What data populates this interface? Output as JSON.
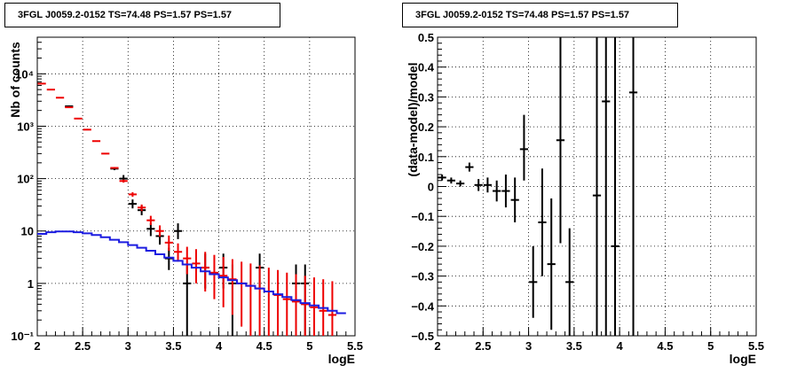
{
  "chart_data": [
    {
      "type": "scatter",
      "title": "3FGL J0059.2-0152 TS=74.48 PS=1.57 PS=1.57",
      "xlabel": "logE",
      "ylabel": "Nb of counts",
      "xlim": [
        2,
        5.5
      ],
      "ylim": [
        0.1,
        50000
      ],
      "yscale": "log",
      "grid": true,
      "x_ticks": [
        "2",
        "2.5",
        "3",
        "3.5",
        "4",
        "4.5",
        "5",
        "5.5"
      ],
      "y_ticks": [
        "10⁻¹",
        "1",
        "10",
        "10²",
        "10³",
        "10⁴"
      ],
      "series": [
        {
          "color": "#000000",
          "points": [
            {
              "x": 2.35,
              "y": 2400,
              "lo": 2300,
              "hi": 2500
            },
            {
              "x": 2.85,
              "y": 155,
              "lo": 145,
              "hi": 165
            },
            {
              "x": 2.95,
              "y": 100,
              "lo": 85,
              "hi": 117
            },
            {
              "x": 3.05,
              "y": 33,
              "lo": 27,
              "hi": 40
            },
            {
              "x": 3.15,
              "y": 25,
              "lo": 20,
              "hi": 31
            },
            {
              "x": 3.25,
              "y": 11,
              "lo": 8,
              "hi": 14
            },
            {
              "x": 3.35,
              "y": 8,
              "lo": 5.5,
              "hi": 11
            },
            {
              "x": 3.45,
              "y": 3,
              "lo": 1.8,
              "hi": 4.8
            },
            {
              "x": 3.55,
              "y": 10,
              "lo": 7,
              "hi": 14
            },
            {
              "x": 3.65,
              "y": 1,
              "lo": 0.1,
              "hi": 2.3
            },
            {
              "x": 3.85,
              "y": 2,
              "lo": 0.8,
              "hi": 3.7
            },
            {
              "x": 4.05,
              "y": 2,
              "lo": 0.8,
              "hi": 3.7
            },
            {
              "x": 4.15,
              "y": 1,
              "lo": 0.1,
              "hi": 2.3
            },
            {
              "x": 4.45,
              "y": 2,
              "lo": 0.8,
              "hi": 3.7
            },
            {
              "x": 4.85,
              "y": 1,
              "lo": 0.1,
              "hi": 2.3
            },
            {
              "x": 4.95,
              "y": 1,
              "lo": 0.1,
              "hi": 2.3
            }
          ]
        },
        {
          "color": "#ee0000",
          "points": [
            {
              "x": 2.05,
              "y": 6500,
              "lo": 6350,
              "hi": 6650
            },
            {
              "x": 2.15,
              "y": 5000,
              "lo": 4900,
              "hi": 5100
            },
            {
              "x": 2.25,
              "y": 3500,
              "lo": 3420,
              "hi": 3580
            },
            {
              "x": 2.35,
              "y": 2300,
              "lo": 2250,
              "hi": 2350
            },
            {
              "x": 2.45,
              "y": 1400,
              "lo": 1370,
              "hi": 1430
            },
            {
              "x": 2.55,
              "y": 860,
              "lo": 845,
              "hi": 875
            },
            {
              "x": 2.65,
              "y": 520,
              "lo": 510,
              "hi": 530
            },
            {
              "x": 2.75,
              "y": 300,
              "lo": 292,
              "hi": 308
            },
            {
              "x": 2.85,
              "y": 160,
              "lo": 155,
              "hi": 165
            },
            {
              "x": 2.95,
              "y": 90,
              "lo": 84,
              "hi": 96
            },
            {
              "x": 3.05,
              "y": 50,
              "lo": 45,
              "hi": 55
            },
            {
              "x": 3.15,
              "y": 28,
              "lo": 24,
              "hi": 32
            },
            {
              "x": 3.25,
              "y": 16,
              "lo": 13,
              "hi": 19.5
            },
            {
              "x": 3.35,
              "y": 10,
              "lo": 7.8,
              "hi": 12.8
            },
            {
              "x": 3.45,
              "y": 6,
              "lo": 4.2,
              "hi": 8.2
            },
            {
              "x": 3.55,
              "y": 4,
              "lo": 2.6,
              "hi": 5.8
            },
            {
              "x": 3.65,
              "y": 3,
              "lo": 1.5,
              "hi": 5
            },
            {
              "x": 3.75,
              "y": 2.4,
              "lo": 1,
              "hi": 4.5
            },
            {
              "x": 3.85,
              "y": 2,
              "lo": 0.7,
              "hi": 4
            },
            {
              "x": 3.95,
              "y": 1.6,
              "lo": 0.5,
              "hi": 3.5
            },
            {
              "x": 4.05,
              "y": 1.4,
              "lo": 0.35,
              "hi": 3.2
            },
            {
              "x": 4.15,
              "y": 1.2,
              "lo": 0.25,
              "hi": 2.9
            },
            {
              "x": 4.25,
              "y": 1.0,
              "lo": 0.15,
              "hi": 2.6
            },
            {
              "x": 4.35,
              "y": 0.9,
              "lo": 0.1,
              "hi": 2.4
            },
            {
              "x": 4.45,
              "y": 0.8,
              "lo": 0.1,
              "hi": 2.2
            },
            {
              "x": 4.55,
              "y": 0.7,
              "lo": 0.1,
              "hi": 2.0
            },
            {
              "x": 4.65,
              "y": 0.6,
              "lo": 0.1,
              "hi": 1.8
            },
            {
              "x": 4.75,
              "y": 0.5,
              "lo": 0.1,
              "hi": 1.6
            },
            {
              "x": 4.85,
              "y": 0.45,
              "lo": 0.1,
              "hi": 1.5
            },
            {
              "x": 4.95,
              "y": 0.4,
              "lo": 0.1,
              "hi": 1.4
            },
            {
              "x": 5.05,
              "y": 0.35,
              "lo": 0.1,
              "hi": 1.3
            },
            {
              "x": 5.15,
              "y": 0.3,
              "lo": 0.1,
              "hi": 1.2
            },
            {
              "x": 5.25,
              "y": 0.25,
              "lo": 0.1,
              "hi": 1.1
            }
          ]
        },
        {
          "color": "#1c1ce0",
          "step": true,
          "x": [
            2.0,
            2.1,
            2.2,
            2.3,
            2.4,
            2.5,
            2.6,
            2.7,
            2.8,
            2.9,
            3.0,
            3.1,
            3.2,
            3.3,
            3.4,
            3.5,
            3.6,
            3.7,
            3.8,
            3.9,
            4.0,
            4.1,
            4.2,
            4.3,
            4.4,
            4.5,
            4.6,
            4.7,
            4.8,
            4.9,
            5.0,
            5.1,
            5.2,
            5.3
          ],
          "values": [
            8.8,
            9.5,
            9.8,
            9.8,
            9.5,
            9.0,
            8.4,
            7.6,
            6.8,
            6.1,
            5.4,
            4.8,
            4.2,
            3.6,
            3.1,
            2.7,
            2.3,
            2.0,
            1.7,
            1.5,
            1.3,
            1.15,
            1.0,
            0.9,
            0.8,
            0.7,
            0.62,
            0.55,
            0.48,
            0.42,
            0.38,
            0.34,
            0.3,
            0.27
          ]
        }
      ]
    },
    {
      "type": "scatter",
      "title": "3FGL J0059.2-0152 TS=74.48 PS=1.57 PS=1.57",
      "xlabel": "logE",
      "ylabel": "(data-model)/model",
      "xlim": [
        2,
        5.5
      ],
      "ylim": [
        -0.5,
        0.5
      ],
      "grid": true,
      "x_ticks": [
        "2",
        "2.5",
        "3",
        "3.5",
        "4",
        "4.5",
        "5",
        "5.5"
      ],
      "y_ticks": [
        "−0.5",
        "−0.4",
        "−0.3",
        "−0.2",
        "−0.1",
        "0",
        "0.1",
        "0.2",
        "0.3",
        "0.4",
        "0.5"
      ],
      "series": [
        {
          "color": "#000000",
          "points": [
            {
              "x": 2.05,
              "y": 0.03,
              "lo": 0.02,
              "hi": 0.04
            },
            {
              "x": 2.15,
              "y": 0.02,
              "lo": 0.01,
              "hi": 0.03
            },
            {
              "x": 2.25,
              "y": 0.01,
              "lo": 0.0,
              "hi": 0.02
            },
            {
              "x": 2.35,
              "y": 0.065,
              "lo": 0.05,
              "hi": 0.08
            },
            {
              "x": 2.45,
              "y": 0.005,
              "lo": -0.015,
              "hi": 0.025
            },
            {
              "x": 2.55,
              "y": 0.005,
              "lo": -0.02,
              "hi": 0.03
            },
            {
              "x": 2.65,
              "y": -0.015,
              "lo": -0.05,
              "hi": 0.02
            },
            {
              "x": 2.75,
              "y": -0.015,
              "lo": -0.07,
              "hi": 0.04
            },
            {
              "x": 2.85,
              "y": -0.045,
              "lo": -0.12,
              "hi": 0.03
            },
            {
              "x": 2.95,
              "y": 0.125,
              "lo": 0.02,
              "hi": 0.24
            },
            {
              "x": 3.05,
              "y": -0.32,
              "lo": -0.44,
              "hi": -0.2
            },
            {
              "x": 3.15,
              "y": -0.12,
              "lo": -0.3,
              "hi": 0.06
            },
            {
              "x": 3.25,
              "y": -0.26,
              "lo": -0.48,
              "hi": -0.04
            },
            {
              "x": 3.35,
              "y": 0.155,
              "lo": -0.19,
              "hi": 0.5
            },
            {
              "x": 3.45,
              "y": -0.32,
              "lo": -0.5,
              "hi": -0.14
            },
            {
              "x": 3.75,
              "y": -0.03,
              "lo": -0.5,
              "hi": 0.5
            },
            {
              "x": 3.85,
              "y": 0.285,
              "lo": -0.5,
              "hi": 0.5
            },
            {
              "x": 3.95,
              "y": -0.2,
              "lo": -0.5,
              "hi": 0.5
            },
            {
              "x": 4.15,
              "y": 0.315,
              "lo": -0.5,
              "hi": 0.5
            }
          ]
        }
      ]
    }
  ]
}
